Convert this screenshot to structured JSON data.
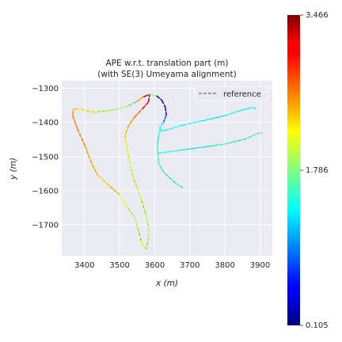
{
  "chart_data": {
    "type": "line",
    "title": "APE w.r.t. translation part (m)",
    "subtitle": "(with SE(3) Umeyama alignment)",
    "xlabel": "x (m)",
    "ylabel": "y (m)",
    "xlim": [
      3335,
      3935
    ],
    "ylim": [
      -1790,
      -1278
    ],
    "xticks": [
      3400,
      3500,
      3600,
      3700,
      3800,
      3900
    ],
    "yticks": [
      -1300,
      -1400,
      -1500,
      -1600,
      -1700
    ],
    "grid": true,
    "legend": {
      "position": "top-right",
      "entries": [
        "reference"
      ]
    },
    "reference_style": "dashed gray",
    "colormap": "jet",
    "colorbar": {
      "min": 0.105,
      "mid": 1.786,
      "max": 3.466,
      "ticks": [
        "3.466",
        "1.786",
        "0.105"
      ]
    },
    "series": [
      {
        "name": "reference",
        "points": [
          [
            3576,
            -1770
          ],
          [
            3563,
            -1755
          ],
          [
            3556,
            -1725
          ],
          [
            3544,
            -1680
          ],
          [
            3522,
            -1648
          ],
          [
            3498,
            -1610
          ],
          [
            3470,
            -1585
          ],
          [
            3437,
            -1553
          ],
          [
            3420,
            -1520
          ],
          [
            3402,
            -1470
          ],
          [
            3380,
            -1420
          ],
          [
            3366,
            -1380
          ],
          [
            3368,
            -1362
          ],
          [
            3382,
            -1360
          ],
          [
            3428,
            -1370
          ],
          [
            3471,
            -1365
          ],
          [
            3518,
            -1355
          ],
          [
            3547,
            -1340
          ],
          [
            3568,
            -1325
          ],
          [
            3585,
            -1318
          ],
          [
            3605,
            -1322
          ],
          [
            3620,
            -1335
          ],
          [
            3630,
            -1355
          ],
          [
            3633,
            -1378
          ],
          [
            3625,
            -1400
          ],
          [
            3615,
            -1412
          ],
          [
            3615,
            -1424
          ],
          [
            3627,
            -1424
          ],
          [
            3680,
            -1408
          ],
          [
            3750,
            -1392
          ],
          [
            3800,
            -1380
          ],
          [
            3848,
            -1364
          ],
          [
            3880,
            -1356
          ],
          [
            3887,
            -1359
          ],
          [
            3884,
            -1362
          ]
        ],
        "errors": [
          2.05,
          2.05,
          2.0,
          1.95,
          1.95,
          2.4,
          2.35,
          2.35,
          2.45,
          2.6,
          2.65,
          2.6,
          2.5,
          2.35,
          2.05,
          1.95,
          1.85,
          1.75,
          3.3,
          3.4,
          0.3,
          0.25,
          0.25,
          0.35,
          1.35,
          1.4,
          1.4,
          1.45,
          1.45,
          1.45,
          1.45,
          1.45,
          1.45,
          1.45,
          1.45
        ]
      },
      {
        "name": "",
        "points": [
          [
            3520,
            -1470
          ],
          [
            3515,
            -1440
          ],
          [
            3525,
            -1410
          ],
          [
            3542,
            -1385
          ],
          [
            3565,
            -1360
          ],
          [
            3582,
            -1340
          ],
          [
            3585,
            -1320
          ]
        ],
        "errors": [
          2.2,
          2.3,
          2.4,
          2.6,
          2.8,
          3.2,
          3.4
        ]
      },
      {
        "name": "",
        "points": [
          [
            3520,
            -1470
          ],
          [
            3527,
            -1510
          ],
          [
            3538,
            -1560
          ],
          [
            3560,
            -1620
          ],
          [
            3575,
            -1670
          ],
          [
            3583,
            -1710
          ],
          [
            3582,
            -1742
          ],
          [
            3576,
            -1770
          ]
        ],
        "errors": [
          2.2,
          2.1,
          2.05,
          2.0,
          2.0,
          1.95,
          1.95,
          2.05
        ]
      },
      {
        "name": "",
        "points": [
          [
            3615,
            -1424
          ],
          [
            3611,
            -1440
          ],
          [
            3608,
            -1465
          ],
          [
            3609,
            -1490
          ],
          [
            3682,
            -1480
          ],
          [
            3740,
            -1472
          ],
          [
            3800,
            -1463
          ],
          [
            3860,
            -1448
          ],
          [
            3893,
            -1432
          ],
          [
            3906,
            -1430
          ]
        ],
        "errors": [
          1.4,
          1.45,
          1.5,
          1.5,
          1.45,
          1.45,
          1.5,
          1.6,
          1.7,
          1.75
        ]
      },
      {
        "name": "",
        "points": [
          [
            3609,
            -1490
          ],
          [
            3611,
            -1520
          ],
          [
            3625,
            -1545
          ],
          [
            3645,
            -1565
          ],
          [
            3665,
            -1582
          ],
          [
            3681,
            -1592
          ]
        ],
        "errors": [
          1.5,
          1.55,
          1.6,
          1.6,
          1.65,
          1.7
        ]
      }
    ]
  }
}
